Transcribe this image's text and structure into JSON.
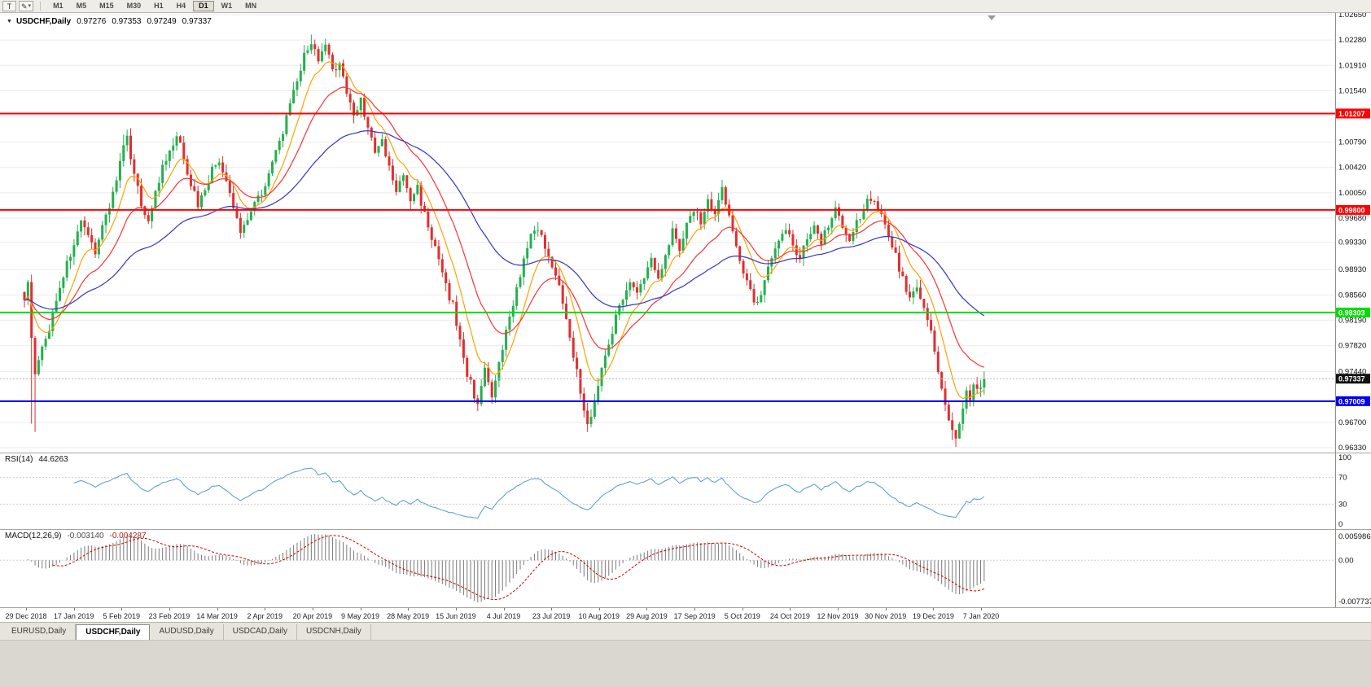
{
  "toolbar": {
    "buttons": [
      {
        "label": "T",
        "name": "chart-type"
      },
      {
        "icon": "✎",
        "caret": "▾",
        "name": "draw-tool"
      }
    ],
    "timeframes": [
      "M1",
      "M5",
      "M15",
      "M30",
      "H1",
      "H4",
      "D1",
      "W1",
      "MN"
    ],
    "active_timeframe": "D1"
  },
  "chart": {
    "title_icon": "▼",
    "symbol_period": "USDCHF,Daily",
    "ohlc": {
      "open": "0.97276",
      "high": "0.97353",
      "low": "0.97249",
      "close": "0.97337"
    }
  },
  "rsi": {
    "label": "RSI(14)",
    "value": "44.6263",
    "period": 14,
    "levels": [
      "100",
      "70",
      "30",
      "0"
    ],
    "color": "#4E9BD5"
  },
  "macd": {
    "label": "MACD(12,26,9)",
    "main_value": "-0.003140",
    "signal_value": "-0.004287",
    "axis_labels": [
      "0.005986",
      "0.00",
      "-0.007737"
    ],
    "fast": 12,
    "slow": 26,
    "signal": 9,
    "histogram_color": "#7A7A7A",
    "signal_color": "#CC0000"
  },
  "tabs": [
    {
      "label": "EURUSD,Daily",
      "active": false
    },
    {
      "label": "USDCHF,Daily",
      "active": true
    },
    {
      "label": "AUDUSD,Daily",
      "active": false
    },
    {
      "label": "USDCAD,Daily",
      "active": false
    },
    {
      "label": "USDCNH,Daily",
      "active": false
    }
  ],
  "chart_data": {
    "type": "candlestick",
    "title": "USDCHF,Daily",
    "current_ohlc": {
      "open": 0.97276,
      "high": 0.97353,
      "low": 0.97249,
      "close": 0.97337
    },
    "x_tick_labels": [
      "29 Dec 2018",
      "17 Jan 2019",
      "5 Feb 2019",
      "23 Feb 2019",
      "14 Mar 2019",
      "2 Apr 2019",
      "20 Apr 2019",
      "9 May 2019",
      "28 May 2019",
      "15 Jun 2019",
      "4 Jul 2019",
      "23 Jul 2019",
      "10 Aug 2019",
      "29 Aug 2019",
      "17 Sep 2019",
      "5 Oct 2019",
      "24 Oct 2019",
      "12 Nov 2019",
      "30 Nov 2019",
      "19 Dec 2019",
      "7 Jan 2020"
    ],
    "y_tick_labels": [
      "1.02650",
      "1.02280",
      "1.01910",
      "1.01540",
      "1.00790",
      "1.00420",
      "1.00050",
      "0.99680",
      "0.99330",
      "0.98930",
      "0.98560",
      "0.98190",
      "0.97820",
      "0.97440",
      "0.96700",
      "0.96330"
    ],
    "ylim": [
      0.9633,
      1.0265
    ],
    "price_top": 1.0265,
    "price_bottom": 0.9633,
    "bar_count": 272,
    "first_bar_x": 30,
    "bar_spacing_px": 4.35,
    "first_label_x": 32,
    "label_spacing_px": 58.65,
    "shift_marker_x": 1218,
    "noise": 0.0014,
    "wick": 0.0012,
    "last_close": 0.97337,
    "colors": {
      "up": "#22B14C",
      "down": "#E12E2E"
    },
    "levels": [
      {
        "price": 1.01207,
        "label": "1.01207",
        "color": "#FF0000",
        "kind": "resistance"
      },
      {
        "price": 0.998,
        "label": "0.99800",
        "color": "#FF0000",
        "kind": "resistance"
      },
      {
        "price": 0.98303,
        "label": "0.98303",
        "color": "#00DD00",
        "kind": "support"
      },
      {
        "price": 0.97009,
        "label": "0.97009",
        "color": "#0000EE",
        "kind": "support"
      }
    ],
    "current_price": {
      "value": 0.97337,
      "label": "0.97337",
      "tag_color": "#111111"
    },
    "moving_averages": [
      {
        "period": 9,
        "color": "#FFA200"
      },
      {
        "period": 21,
        "color": "#FF3232"
      },
      {
        "period": 55,
        "color": "#3434CC"
      }
    ],
    "close_waypoints": [
      [
        0,
        0.9855
      ],
      [
        1,
        0.9868
      ],
      [
        2,
        0.98
      ],
      [
        3,
        0.9735
      ],
      [
        4,
        0.9758
      ],
      [
        6,
        0.979
      ],
      [
        8,
        0.9828
      ],
      [
        10,
        0.987
      ],
      [
        12,
        0.99
      ],
      [
        14,
        0.9932
      ],
      [
        16,
        0.9958
      ],
      [
        18,
        0.9938
      ],
      [
        20,
        0.9922
      ],
      [
        22,
        0.9956
      ],
      [
        24,
        0.9988
      ],
      [
        26,
        1.0024
      ],
      [
        28,
        1.007
      ],
      [
        29,
        1.0082
      ],
      [
        31,
        1.0038
      ],
      [
        33,
        0.9985
      ],
      [
        35,
        0.9968
      ],
      [
        37,
        1.0004
      ],
      [
        39,
        1.004
      ],
      [
        41,
        1.0062
      ],
      [
        43,
        1.0086
      ],
      [
        45,
        1.0058
      ],
      [
        47,
        1.0018
      ],
      [
        49,
        0.9988
      ],
      [
        51,
        1.0012
      ],
      [
        53,
        1.0038
      ],
      [
        55,
        1.0052
      ],
      [
        57,
        1.0018
      ],
      [
        59,
        0.9984
      ],
      [
        61,
        0.9948
      ],
      [
        63,
        0.997
      ],
      [
        65,
        0.9992
      ],
      [
        67,
        1.0008
      ],
      [
        69,
        1.0032
      ],
      [
        71,
        1.0062
      ],
      [
        73,
        1.0096
      ],
      [
        75,
        1.013
      ],
      [
        77,
        1.0168
      ],
      [
        79,
        1.0204
      ],
      [
        81,
        1.0228
      ],
      [
        83,
        1.0192
      ],
      [
        85,
        1.0222
      ],
      [
        87,
        1.018
      ],
      [
        89,
        1.0198
      ],
      [
        91,
        1.015
      ],
      [
        93,
        1.0118
      ],
      [
        95,
        1.0142
      ],
      [
        97,
        1.01
      ],
      [
        99,
        1.0062
      ],
      [
        101,
        1.008
      ],
      [
        103,
        1.004
      ],
      [
        105,
        1.0008
      ],
      [
        107,
        1.0028
      ],
      [
        109,
        0.9995
      ],
      [
        111,
        1.0012
      ],
      [
        113,
        0.9974
      ],
      [
        115,
        0.994
      ],
      [
        117,
        0.9904
      ],
      [
        119,
        0.9868
      ],
      [
        121,
        0.984
      ],
      [
        123,
        0.9788
      ],
      [
        125,
        0.9742
      ],
      [
        127,
        0.971
      ],
      [
        128,
        0.97
      ],
      [
        129,
        0.9728
      ],
      [
        130,
        0.9748
      ],
      [
        131,
        0.9722
      ],
      [
        132,
        0.9704
      ],
      [
        134,
        0.9752
      ],
      [
        136,
        0.98
      ],
      [
        138,
        0.9846
      ],
      [
        140,
        0.9886
      ],
      [
        142,
        0.9922
      ],
      [
        144,
        0.9956
      ],
      [
        146,
        0.9938
      ],
      [
        148,
        0.9916
      ],
      [
        150,
        0.9884
      ],
      [
        152,
        0.9848
      ],
      [
        154,
        0.98
      ],
      [
        156,
        0.9742
      ],
      [
        158,
        0.969
      ],
      [
        159,
        0.9664
      ],
      [
        160,
        0.9684
      ],
      [
        161,
        0.9702
      ],
      [
        163,
        0.9746
      ],
      [
        165,
        0.979
      ],
      [
        167,
        0.9822
      ],
      [
        169,
        0.9854
      ],
      [
        171,
        0.988
      ],
      [
        173,
        0.9856
      ],
      [
        175,
        0.9882
      ],
      [
        177,
        0.9906
      ],
      [
        179,
        0.988
      ],
      [
        181,
        0.992
      ],
      [
        183,
        0.995
      ],
      [
        185,
        0.9926
      ],
      [
        187,
        0.9956
      ],
      [
        189,
        0.9984
      ],
      [
        191,
        0.9962
      ],
      [
        193,
        0.9996
      ],
      [
        195,
        0.9972
      ],
      [
        197,
        1.0012
      ],
      [
        199,
        0.9966
      ],
      [
        201,
        0.993
      ],
      [
        203,
        0.9894
      ],
      [
        205,
        0.9862
      ],
      [
        207,
        0.984
      ],
      [
        209,
        0.9878
      ],
      [
        211,
        0.9906
      ],
      [
        213,
        0.993
      ],
      [
        215,
        0.9954
      ],
      [
        217,
        0.993
      ],
      [
        219,
        0.9912
      ],
      [
        221,
        0.9936
      ],
      [
        223,
        0.9958
      ],
      [
        225,
        0.9936
      ],
      [
        227,
        0.996
      ],
      [
        229,
        0.9984
      ],
      [
        231,
        0.996
      ],
      [
        233,
        0.9936
      ],
      [
        235,
        0.996
      ],
      [
        237,
        0.9984
      ],
      [
        239,
        1.0
      ],
      [
        241,
        0.9988
      ],
      [
        242,
        0.997
      ],
      [
        244,
        0.9944
      ],
      [
        246,
        0.9912
      ],
      [
        248,
        0.988
      ],
      [
        250,
        0.9848
      ],
      [
        252,
        0.987
      ],
      [
        254,
        0.9838
      ],
      [
        256,
        0.98
      ],
      [
        257,
        0.9772
      ],
      [
        258,
        0.9744
      ],
      [
        259,
        0.9716
      ],
      [
        260,
        0.9694
      ],
      [
        261,
        0.9672
      ],
      [
        262,
        0.9652
      ],
      [
        263,
        0.9648
      ],
      [
        264,
        0.967
      ],
      [
        265,
        0.969
      ],
      [
        266,
        0.9712
      ],
      [
        267,
        0.97
      ],
      [
        268,
        0.9722
      ],
      [
        269,
        0.9714
      ],
      [
        270,
        0.9727
      ],
      [
        271,
        0.9734
      ]
    ],
    "high_overrides": [
      [
        28,
        1.009
      ],
      [
        43,
        1.0094
      ],
      [
        81,
        1.0236
      ],
      [
        85,
        1.023
      ],
      [
        197,
        1.0024
      ],
      [
        239,
        1.0008
      ]
    ],
    "low_overrides": [
      [
        2,
        0.9668
      ],
      [
        3,
        0.9656
      ],
      [
        128,
        0.9694
      ],
      [
        132,
        0.9697
      ],
      [
        158,
        0.9678
      ],
      [
        159,
        0.9656
      ],
      [
        262,
        0.9644
      ],
      [
        263,
        0.9634
      ]
    ]
  }
}
